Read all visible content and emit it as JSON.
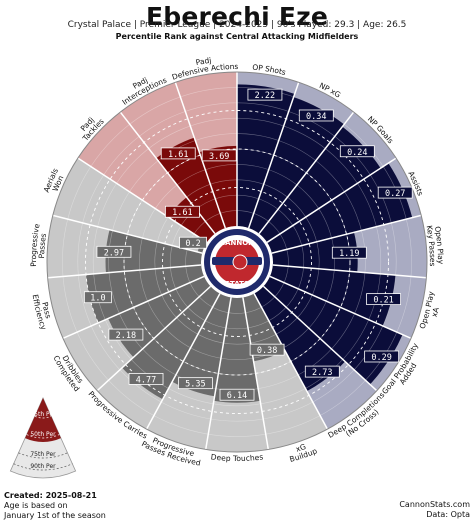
{
  "header": {
    "title": "Eberechi Eze",
    "subtitle": "Crystal Palace  | Premier League | 2024-2025 | 90's Played: 29.3 | Age: 26.5",
    "subtitle2": "Percentile Rank against Central Attacking Midfielders"
  },
  "logo": {
    "line1": "CANNON",
    "line2": "STATS"
  },
  "legend": {
    "labels": [
      "90th Per",
      "75th Per",
      "50th Per",
      "25th Per"
    ],
    "colors": {
      "light": "#e8e8e8",
      "dark": "#8a1a1a"
    }
  },
  "footer": {
    "created": "Created: 2025-08-21",
    "note_line1": "Age is based on",
    "note_line2": "January 1st of the season",
    "site": "CannonStats.com",
    "source": "Data: Opta"
  },
  "colors": {
    "defense_dark": "#7a0a0a",
    "defense_light": "#d9a6a6",
    "possession_dark": "#6b6b6b",
    "possession_light": "#c8c8c8",
    "attack_dark": "#0b0d3a",
    "attack_light": "#a9abc2",
    "logo_red": "#c0282e",
    "logo_navy": "#1f2a6b"
  },
  "chart_data": {
    "type": "radar",
    "title": "Eberechi Eze",
    "metrics": [
      {
        "label": "OP Shots",
        "value": "2.22",
        "percentile": 92,
        "group": "attack"
      },
      {
        "label": "NP xG",
        "value": "0.34",
        "percentile": 90,
        "group": "attack"
      },
      {
        "label": "NP Goals",
        "value": "0.24",
        "percentile": 88,
        "group": "attack"
      },
      {
        "label": "Assists",
        "value": "0.27",
        "percentile": 94,
        "group": "attack"
      },
      {
        "label": "Open Play\nKey Passes",
        "value": "1.19",
        "percentile": 55,
        "group": "attack"
      },
      {
        "label": "Open Play\nxA",
        "value": "0.21",
        "percentile": 80,
        "group": "attack"
      },
      {
        "label": "Goal Probability\nAdded",
        "value": "0.29",
        "percentile": 94,
        "group": "attack"
      },
      {
        "label": "Deep Completions\n(No Cross)",
        "value": "2.73",
        "percentile": 72,
        "group": "attack"
      },
      {
        "label": "xG\nBuildup",
        "value": "0.38",
        "percentile": 42,
        "group": "possession"
      },
      {
        "label": "Deep Touches",
        "value": "6.14",
        "percentile": 68,
        "group": "possession"
      },
      {
        "label": "Progressive\nPasses Received",
        "value": "5.35",
        "percentile": 65,
        "group": "possession"
      },
      {
        "label": "Progressive Carries",
        "value": "4.77",
        "percentile": 78,
        "group": "possession"
      },
      {
        "label": "Dribbles\nCompleted",
        "value": "2.18",
        "percentile": 68,
        "group": "possession"
      },
      {
        "label": "Pass\nEfficiency",
        "value": "1.0",
        "percentile": 75,
        "group": "possession"
      },
      {
        "label": "Progressive\nPasses",
        "value": "2.97",
        "percentile": 62,
        "group": "possession"
      },
      {
        "label": "Aerials\nWon",
        "value": "0.2",
        "percentile": 3,
        "group": "possession"
      },
      {
        "label": "Padj\nTackles",
        "value": "1.61",
        "percentile": 30,
        "group": "defense"
      },
      {
        "label": "Padj\nInterceptions",
        "value": "1.61",
        "percentile": 62,
        "group": "defense"
      },
      {
        "label": "Padj\nDefensive Actions",
        "value": "3.69",
        "percentile": 52,
        "group": "defense"
      }
    ]
  }
}
